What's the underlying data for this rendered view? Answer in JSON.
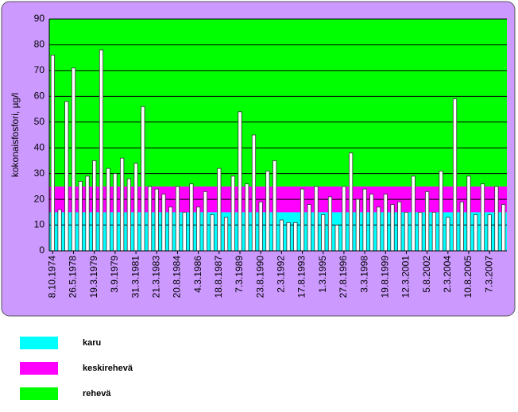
{
  "chart_data": {
    "type": "bar",
    "y_label": "kokonaisfosfori, µg/l",
    "categories": [
      "8.10.1974",
      null,
      null,
      "26.5.1978",
      null,
      null,
      "19.3.1979",
      null,
      null,
      "3.9.1979",
      null,
      null,
      "31.3.1981",
      null,
      null,
      "21.3.1983",
      null,
      null,
      "20.8.1984",
      null,
      null,
      "4.3.1986",
      null,
      null,
      "18.8.1987",
      null,
      null,
      "7.3.1989",
      null,
      null,
      "23.8.1990",
      null,
      null,
      "2.3.1992",
      null,
      null,
      "17.8.1993",
      null,
      null,
      "1.3.1995",
      null,
      null,
      "27.8.1996",
      null,
      null,
      "3.3.1998",
      null,
      null,
      "19.8.1999",
      null,
      null,
      "12.3.2001",
      null,
      null,
      "5.8.2002",
      null,
      null,
      "2.3.2004",
      null,
      null,
      "10.8.2005",
      null,
      null,
      "7.3.2007",
      null,
      null
    ],
    "values": [
      76,
      16,
      58,
      71,
      27,
      29,
      35,
      78,
      32,
      30,
      36,
      28,
      34,
      56,
      25,
      24,
      22,
      17,
      25,
      15,
      26,
      17,
      23,
      14,
      32,
      13,
      29,
      54,
      26,
      45,
      19,
      31,
      35,
      12,
      11,
      11,
      24,
      18,
      25,
      14,
      21,
      10,
      25,
      38,
      20,
      24,
      22,
      17,
      22,
      18,
      19,
      15,
      29,
      15,
      23,
      15,
      31,
      13,
      59,
      19,
      29,
      14,
      26,
      14,
      25,
      18
    ],
    "color": "#ffffff",
    "bands": [
      {
        "name": "karu",
        "color": "#00ffff",
        "from": 0,
        "to": 15
      },
      {
        "name": "keskirehevä",
        "color": "#ff00ff",
        "from": 15,
        "to": 25
      },
      {
        "name": "rehevä",
        "color": "#00ff00",
        "from": 25,
        "to": 90
      }
    ],
    "ylim": [
      0,
      90
    ],
    "yticks": [
      0,
      10,
      20,
      30,
      40,
      50,
      60,
      70,
      80,
      90
    ],
    "grid": true
  }
}
